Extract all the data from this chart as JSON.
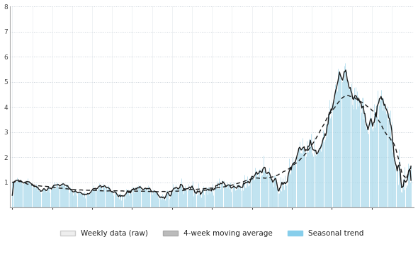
{
  "background_color": "#ffffff",
  "plot_bg": "#ffffff",
  "bar_color": "#a8d8ea",
  "line_color": "#1a1a1a",
  "dashed_color": "#1a1a1a",
  "grid_color": "#c8d0d8",
  "ylim": [
    0,
    8
  ],
  "ytick_labels": [
    "",
    "1",
    "2",
    "3",
    "4",
    "5",
    "6",
    "7",
    "8"
  ],
  "n_points": 520,
  "legend_labels": [
    "Weekly data (raw)",
    "4-week moving average",
    "Seasonal trend"
  ],
  "legend_colors": [
    "#e8e8e8",
    "#b0b0b0",
    "#87ceeb"
  ]
}
